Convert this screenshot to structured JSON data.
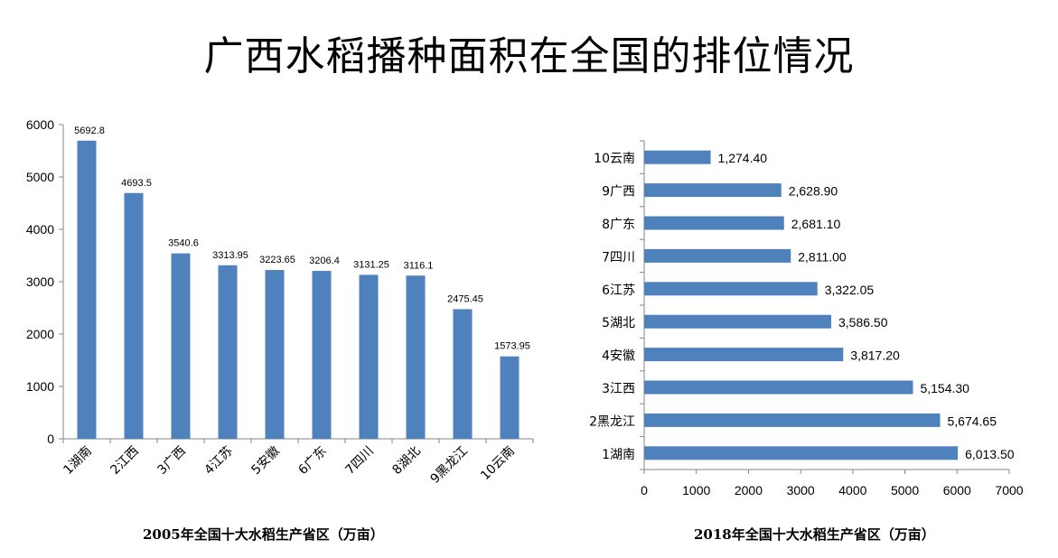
{
  "title": "广西水稻播种面积在全国的排位情况",
  "chart_data": [
    {
      "type": "bar",
      "title": "",
      "xlabel": "2005年全国十大水稻生产省区（万亩）",
      "ylabel": "",
      "categories": [
        "1湖南",
        "2江西",
        "3广西",
        "4江苏",
        "5安徽",
        "6广东",
        "7四川",
        "8湖北",
        "9黑龙江",
        "10云南"
      ],
      "values": [
        5692.8,
        4693.5,
        3540.6,
        3313.95,
        3223.65,
        3206.4,
        3131.25,
        3116.1,
        2475.45,
        1573.95
      ],
      "value_labels": [
        "5692.8",
        "4693.5",
        "3540.6",
        "3313.95",
        "3223.65",
        "3206.4",
        "3131.25",
        "3116.1",
        "2475.45",
        "1573.95"
      ],
      "yticks": [
        "0",
        "1000",
        "2000",
        "3000",
        "4000",
        "5000",
        "6000"
      ],
      "ylim": [
        0,
        6000
      ],
      "color": "#4F81BD",
      "grid": false,
      "legend": "none"
    },
    {
      "type": "bar",
      "orientation": "horizontal",
      "title": "",
      "xlabel": "2018年全国十大水稻生产省区（万亩）",
      "ylabel": "",
      "categories": [
        "1湖南",
        "2黑龙江",
        "3江西",
        "4安徽",
        "5湖北",
        "6江苏",
        "7四川",
        "8广东",
        "9广西",
        "10云南"
      ],
      "values": [
        6013.5,
        5674.65,
        5154.3,
        3817.2,
        3586.5,
        3322.05,
        2811.0,
        2681.1,
        2628.9,
        1274.4
      ],
      "value_labels": [
        "6,013.50",
        "5,674.65",
        "5,154.30",
        "3,817.20",
        "3,586.50",
        "3,322.05",
        "2,811.00",
        "2,681.10",
        "2,628.90",
        "1,274.40"
      ],
      "xticks": [
        "0",
        "1000",
        "2000",
        "3000",
        "4000",
        "5000",
        "6000",
        "7000"
      ],
      "xlim": [
        0,
        7000
      ],
      "color": "#4F81BD",
      "grid": false,
      "legend": "none"
    }
  ]
}
